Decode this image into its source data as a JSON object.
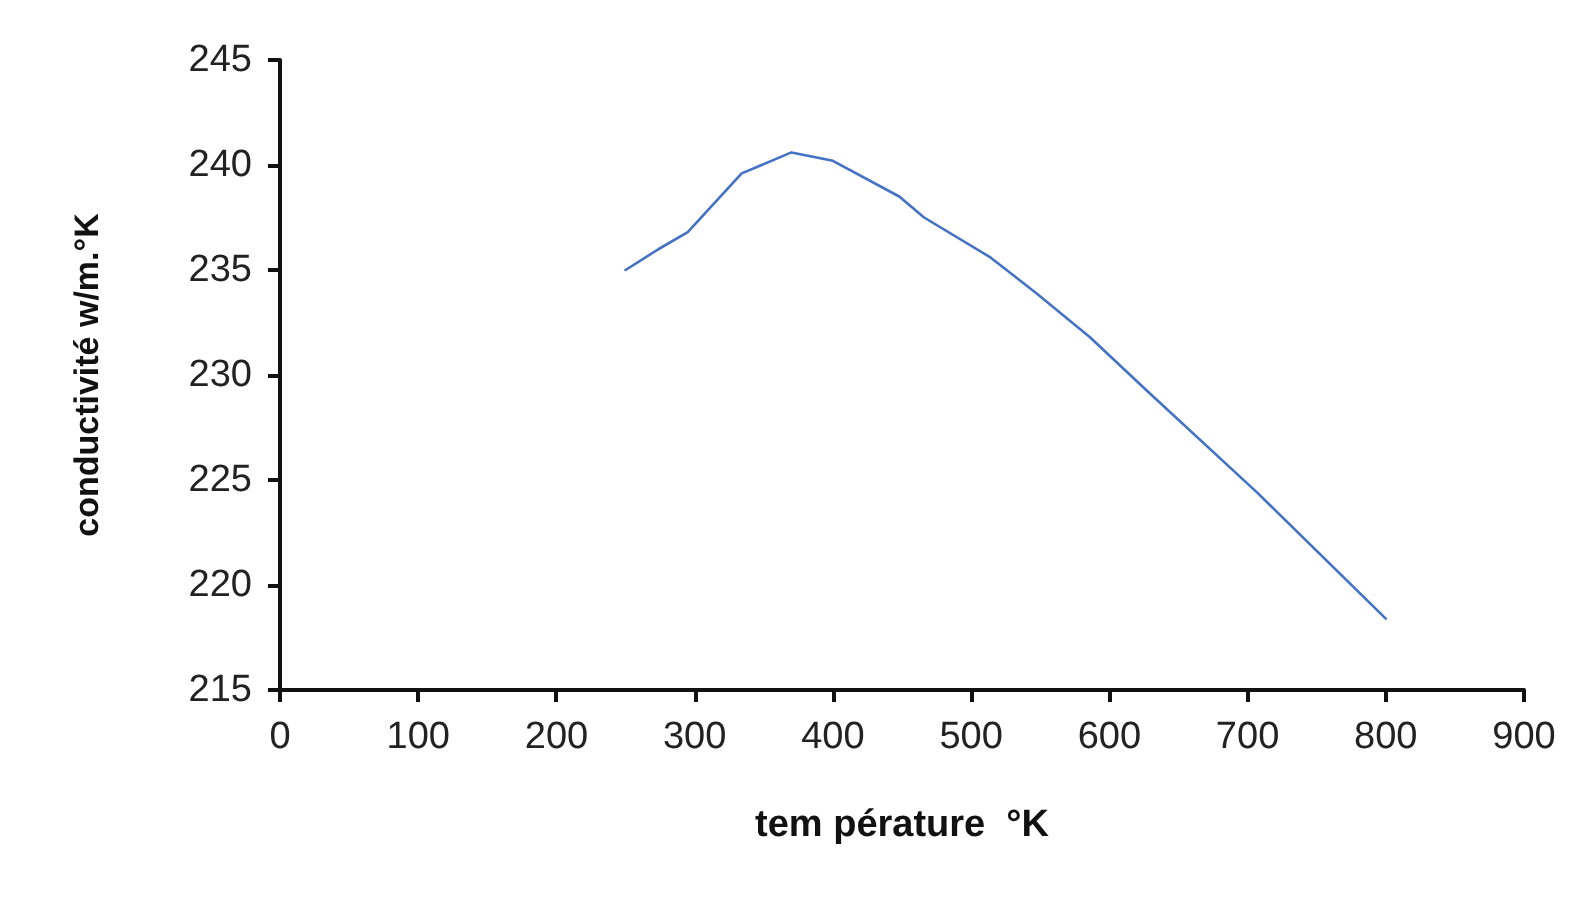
{
  "chart_data": {
    "type": "line",
    "xlabel": "tem pérature  °K",
    "ylabel": "conductivité w/m.°K",
    "series": [
      {
        "color": "#4472c4",
        "x": [
          250,
          274,
          295,
          334,
          370,
          400,
          448,
          466,
          514,
          547,
          586,
          628,
          707,
          800
        ],
        "values": [
          235.0,
          236.0,
          236.8,
          239.6,
          240.6,
          240.2,
          238.5,
          237.5,
          235.6,
          233.9,
          231.8,
          229.2,
          224.4,
          218.4
        ]
      }
    ],
    "xlim": [
      0,
      900
    ],
    "xticks": [
      0,
      100,
      200,
      300,
      400,
      500,
      600,
      700,
      800,
      900
    ],
    "ylim": [
      215,
      245
    ],
    "yticks": [
      215,
      220,
      225,
      230,
      235,
      240,
      245
    ],
    "grid": false,
    "marker": "none",
    "line_style": "solid"
  }
}
